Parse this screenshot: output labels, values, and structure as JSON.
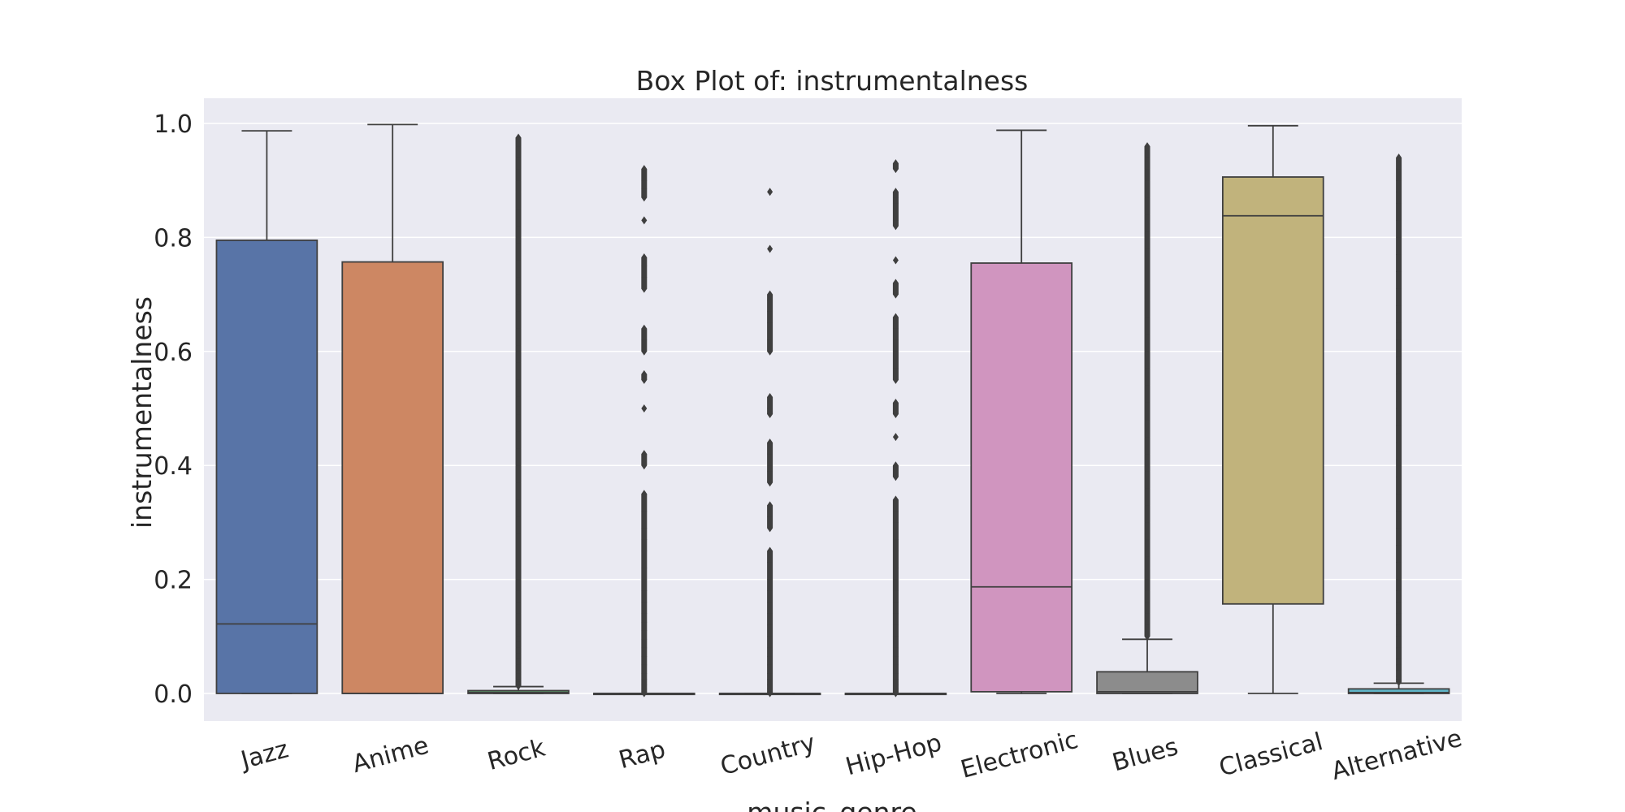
{
  "chart_data": {
    "type": "box",
    "title": "Box Plot of: instrumentalness",
    "xlabel": "music_genre",
    "ylabel": "instrumentalness",
    "ylim": [
      -0.048,
      1.045
    ],
    "yticks": [
      "0.0",
      "0.2",
      "0.4",
      "0.6",
      "0.8",
      "1.0"
    ],
    "grid": true,
    "background": "#eaeaf2",
    "categories": [
      "Jazz",
      "Anime",
      "Rock",
      "Rap",
      "Country",
      "Hip-Hop",
      "Electronic",
      "Blues",
      "Classical",
      "Alternative"
    ],
    "boxes": [
      {
        "name": "Jazz",
        "min": 0.0,
        "q1": 0.0,
        "median": 0.122,
        "q3": 0.795,
        "max": 0.987,
        "color": "#5874a7",
        "outliers": []
      },
      {
        "name": "Anime",
        "min": 0.0,
        "q1": 0.0,
        "median": 0.0,
        "q3": 0.757,
        "max": 0.998,
        "color": "#cd8763",
        "outliers": []
      },
      {
        "name": "Rock",
        "min": 0.0,
        "q1": 0.0,
        "median": 0.0015,
        "q3": 0.005,
        "max": 0.012,
        "color": "#5d9e6d",
        "outliers": [
          0.013,
          0.016,
          0.02,
          0.025,
          0.03,
          0.035,
          0.04,
          0.05,
          0.06,
          0.07,
          0.08,
          0.09,
          0.1,
          0.12,
          0.14,
          0.16,
          0.18,
          0.2,
          0.22,
          0.25,
          0.28,
          0.31,
          0.34,
          0.37,
          0.4,
          0.43,
          0.46,
          0.49,
          0.52,
          0.55,
          0.58,
          0.61,
          0.64,
          0.67,
          0.7,
          0.73,
          0.76,
          0.79,
          0.82,
          0.85,
          0.88,
          0.9,
          0.92,
          0.94,
          0.96,
          0.975
        ]
      },
      {
        "name": "Rap",
        "min": 0.0,
        "q1": 0.0,
        "median": 0.0,
        "q3": 0.0,
        "max": 0.0,
        "color": "#bb5758",
        "outliers": [
          0.0005,
          0.003,
          0.008,
          0.015,
          0.025,
          0.035,
          0.05,
          0.065,
          0.08,
          0.095,
          0.11,
          0.125,
          0.14,
          0.16,
          0.18,
          0.2,
          0.22,
          0.25,
          0.27,
          0.29,
          0.32,
          0.35,
          0.4,
          0.42,
          0.5,
          0.55,
          0.56,
          0.6,
          0.62,
          0.64,
          0.71,
          0.73,
          0.75,
          0.765,
          0.83,
          0.87,
          0.885,
          0.9,
          0.92
        ]
      },
      {
        "name": "Country",
        "min": 0.0,
        "q1": 0.0,
        "median": 0.0,
        "q3": 0.0,
        "max": 0.0,
        "color": "#8172b2",
        "outliers": [
          0.0005,
          0.003,
          0.008,
          0.015,
          0.025,
          0.035,
          0.05,
          0.065,
          0.08,
          0.1,
          0.12,
          0.14,
          0.16,
          0.18,
          0.2,
          0.23,
          0.25,
          0.29,
          0.31,
          0.33,
          0.37,
          0.39,
          0.42,
          0.44,
          0.49,
          0.5,
          0.52,
          0.6,
          0.62,
          0.65,
          0.67,
          0.69,
          0.7,
          0.78,
          0.88
        ]
      },
      {
        "name": "Hip-Hop",
        "min": 0.0,
        "q1": 0.0,
        "median": 0.0,
        "q3": 0.0,
        "max": 0.0,
        "color": "#937860",
        "outliers": [
          0.0005,
          0.003,
          0.008,
          0.015,
          0.025,
          0.035,
          0.05,
          0.065,
          0.08,
          0.1,
          0.12,
          0.14,
          0.16,
          0.18,
          0.2,
          0.22,
          0.25,
          0.27,
          0.3,
          0.32,
          0.34,
          0.38,
          0.4,
          0.45,
          0.49,
          0.51,
          0.55,
          0.57,
          0.6,
          0.62,
          0.64,
          0.66,
          0.7,
          0.72,
          0.76,
          0.82,
          0.83,
          0.86,
          0.87,
          0.88,
          0.92,
          0.93
        ]
      },
      {
        "name": "Electronic",
        "min": 0.0,
        "q1": 0.003,
        "median": 0.187,
        "q3": 0.755,
        "max": 0.988,
        "color": "#d095bf",
        "outliers": []
      },
      {
        "name": "Blues",
        "min": 0.0,
        "q1": 0.0,
        "median": 0.003,
        "q3": 0.038,
        "max": 0.095,
        "color": "#8c8c8c",
        "outliers": [
          0.1,
          0.12,
          0.14,
          0.16,
          0.18,
          0.2,
          0.22,
          0.24,
          0.27,
          0.3,
          0.33,
          0.36,
          0.39,
          0.42,
          0.45,
          0.48,
          0.51,
          0.54,
          0.57,
          0.6,
          0.63,
          0.66,
          0.69,
          0.72,
          0.75,
          0.78,
          0.81,
          0.84,
          0.87,
          0.9,
          0.92,
          0.94,
          0.96
        ]
      },
      {
        "name": "Classical",
        "min": 0.0,
        "q1": 0.157,
        "median": 0.838,
        "q3": 0.906,
        "max": 0.996,
        "color": "#c1b37c",
        "outliers": []
      },
      {
        "name": "Alternative",
        "min": 0.0,
        "q1": 0.0,
        "median": 0.0015,
        "q3": 0.008,
        "max": 0.018,
        "color": "#5fb4c7",
        "outliers": [
          0.02,
          0.025,
          0.03,
          0.04,
          0.05,
          0.06,
          0.08,
          0.1,
          0.12,
          0.14,
          0.16,
          0.18,
          0.2,
          0.23,
          0.26,
          0.29,
          0.32,
          0.35,
          0.38,
          0.41,
          0.44,
          0.47,
          0.5,
          0.53,
          0.56,
          0.59,
          0.62,
          0.65,
          0.68,
          0.71,
          0.74,
          0.77,
          0.8,
          0.83,
          0.86,
          0.88,
          0.9,
          0.92,
          0.94
        ]
      }
    ]
  }
}
